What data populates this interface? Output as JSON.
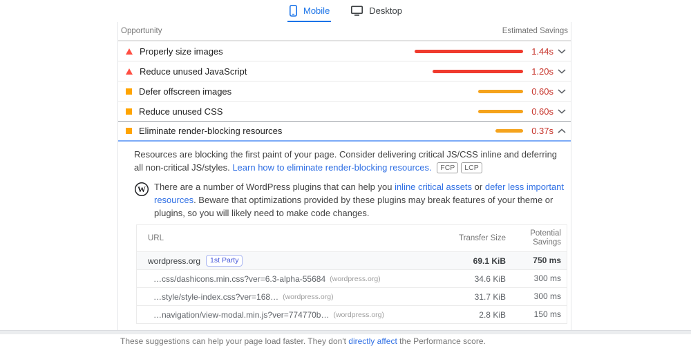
{
  "tabs": [
    {
      "label": "Mobile",
      "active": true,
      "icon": "mobile-icon"
    },
    {
      "label": "Desktop",
      "active": false,
      "icon": "desktop-icon"
    }
  ],
  "opportunities": {
    "header_left": "Opportunity",
    "header_right": "Estimated Savings",
    "rows": [
      {
        "label": "Properly size images",
        "severity": "fail",
        "savings": "1.44s",
        "seconds": 1.44,
        "expanded": false
      },
      {
        "label": "Reduce unused JavaScript",
        "severity": "fail",
        "savings": "1.20s",
        "seconds": 1.2,
        "expanded": false
      },
      {
        "label": "Defer offscreen images",
        "severity": "average",
        "savings": "0.60s",
        "seconds": 0.6,
        "expanded": false
      },
      {
        "label": "Reduce unused CSS",
        "severity": "average",
        "savings": "0.60s",
        "seconds": 0.6,
        "expanded": false
      },
      {
        "label": "Eliminate render-blocking resources",
        "severity": "average",
        "savings": "0.37s",
        "seconds": 0.37,
        "expanded": true
      }
    ]
  },
  "details": {
    "description": {
      "text": "Resources are blocking the first paint of your page. Consider delivering critical JS/CSS inline and deferring all non-critical JS/styles. ",
      "link": "Learn how to eliminate render-blocking resources.",
      "metric_chips": [
        "FCP",
        "LCP"
      ]
    },
    "stack_pack": {
      "icon": "wordpress-logo",
      "text_1": "There are a number of WordPress plugins that can help you ",
      "link_1": "inline critical assets",
      "text_2": " or ",
      "link_2": "defer less important resources",
      "text_3": ". Beware that optimizations provided by these plugins may break features of your theme or plugins, so you will likely need to make code changes."
    },
    "table": {
      "headers": [
        "URL",
        "Transfer Size",
        "Potential Savings"
      ],
      "rows": [
        {
          "url": "wordpress.org",
          "chip": "1st Party",
          "transfer_size": "69.1 KiB",
          "potential_savings": "750 ms"
        },
        {
          "url": "…css/dashicons.min.css?ver=6.3-alpha-55684",
          "host": "(wordpress.org)",
          "transfer_size": "34.6 KiB",
          "potential_savings": "300 ms"
        },
        {
          "url": "…style/style-index.css?ver=168…",
          "host": "(wordpress.org)",
          "transfer_size": "31.7 KiB",
          "potential_savings": "300 ms"
        },
        {
          "url": "…navigation/view-modal.min.js?ver=774770b…",
          "host": "(wordpress.org)",
          "transfer_size": "2.8 KiB",
          "potential_savings": "150 ms"
        }
      ]
    }
  },
  "footer": {
    "text_1": "These suggestions can help your page load faster. They don't ",
    "link": "directly affect",
    "text_2": " the Performance score."
  },
  "colors": {
    "accent_blue": "#1a73e8",
    "fail_red": "#ff4e42",
    "average_orange": "#ffa400",
    "savings_text": "#c7352c",
    "link_blue": "#2f6fe4"
  }
}
